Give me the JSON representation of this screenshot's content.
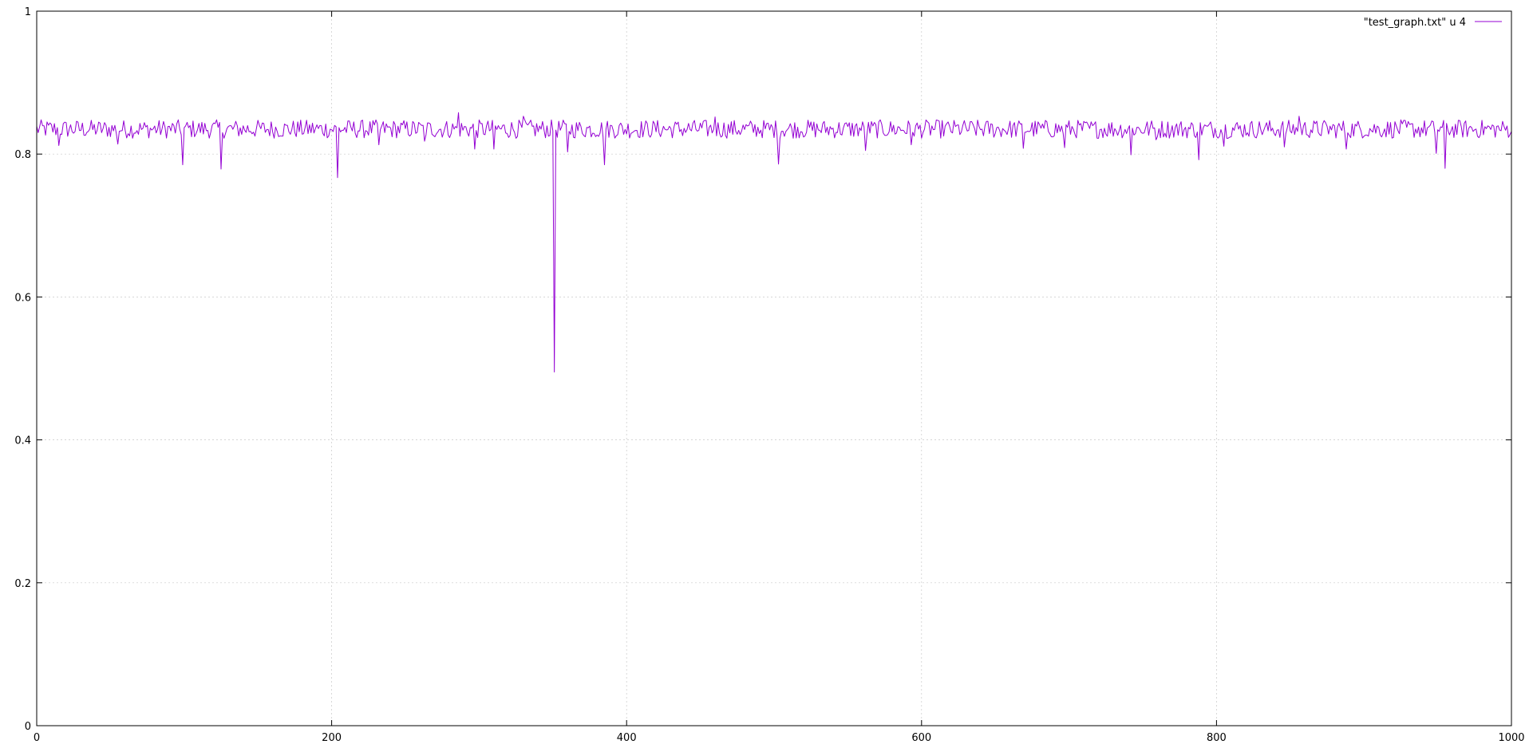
{
  "chart_data": {
    "type": "line",
    "title": "",
    "xlabel": "",
    "ylabel": "",
    "xlim": [
      0,
      1000
    ],
    "ylim": [
      0,
      1
    ],
    "grid": true,
    "legend_position": "top-right",
    "x_ticks": [
      {
        "value": 0,
        "label": "0"
      },
      {
        "value": 200,
        "label": "200"
      },
      {
        "value": 400,
        "label": "400"
      },
      {
        "value": 600,
        "label": "600"
      },
      {
        "value": 800,
        "label": "800"
      },
      {
        "value": 1000,
        "label": "1000"
      }
    ],
    "y_ticks": [
      {
        "value": 0,
        "label": "0"
      },
      {
        "value": 0.2,
        "label": "0.2"
      },
      {
        "value": 0.4,
        "label": "0.4"
      },
      {
        "value": 0.6,
        "label": "0.6"
      },
      {
        "value": 0.8,
        "label": "0.8"
      },
      {
        "value": 1,
        "label": "1"
      }
    ],
    "series": [
      {
        "name": "\"test_graph.txt\" u 4",
        "color": "#9400d3",
        "baseline": 0.835,
        "noise_amplitude": 0.013,
        "points_count": 1000,
        "spikes": [
          {
            "x": 15,
            "y": 0.812
          },
          {
            "x": 55,
            "y": 0.814
          },
          {
            "x": 99,
            "y": 0.785
          },
          {
            "x": 125,
            "y": 0.779
          },
          {
            "x": 204,
            "y": 0.767
          },
          {
            "x": 232,
            "y": 0.813
          },
          {
            "x": 263,
            "y": 0.818
          },
          {
            "x": 286,
            "y": 0.858
          },
          {
            "x": 297,
            "y": 0.807
          },
          {
            "x": 310,
            "y": 0.807
          },
          {
            "x": 330,
            "y": 0.853
          },
          {
            "x": 351,
            "y": 0.495
          },
          {
            "x": 360,
            "y": 0.803
          },
          {
            "x": 385,
            "y": 0.785
          },
          {
            "x": 460,
            "y": 0.852
          },
          {
            "x": 503,
            "y": 0.786
          },
          {
            "x": 562,
            "y": 0.805
          },
          {
            "x": 593,
            "y": 0.813
          },
          {
            "x": 669,
            "y": 0.808
          },
          {
            "x": 697,
            "y": 0.809
          },
          {
            "x": 742,
            "y": 0.799
          },
          {
            "x": 759,
            "y": 0.82
          },
          {
            "x": 788,
            "y": 0.792
          },
          {
            "x": 805,
            "y": 0.811
          },
          {
            "x": 846,
            "y": 0.81
          },
          {
            "x": 856,
            "y": 0.853
          },
          {
            "x": 888,
            "y": 0.807
          },
          {
            "x": 949,
            "y": 0.801
          },
          {
            "x": 955,
            "y": 0.78
          }
        ]
      }
    ]
  }
}
